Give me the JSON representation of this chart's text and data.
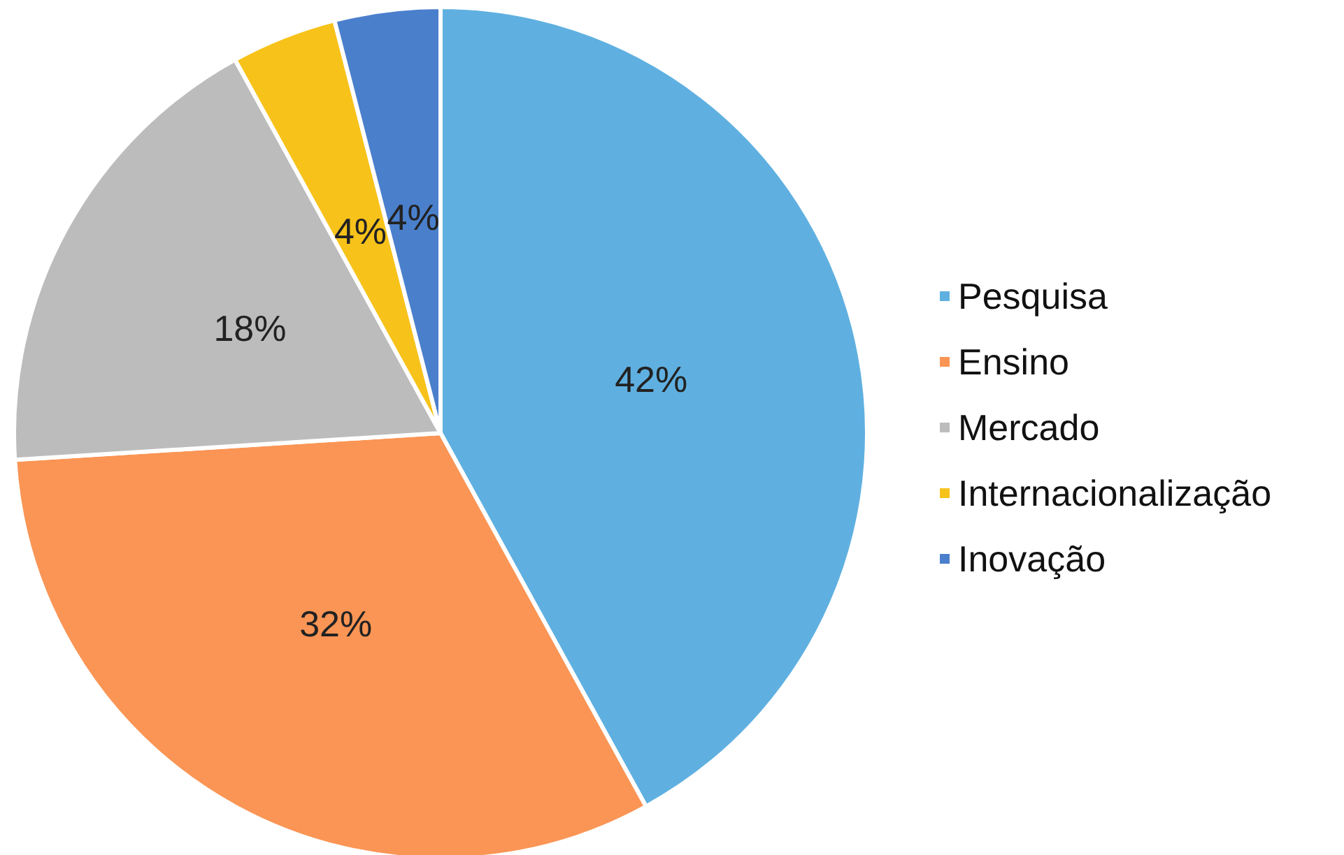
{
  "chart_data": {
    "type": "pie",
    "categories": [
      "Pesquisa",
      "Ensino",
      "Mercado",
      "Internacionalização",
      "Inovação"
    ],
    "values": [
      42,
      32,
      18,
      4,
      4
    ],
    "value_labels": [
      "42%",
      "32%",
      "18%",
      "4%",
      "4%"
    ],
    "colors": [
      "#5fb0e0",
      "#fa9555",
      "#bcbcbc",
      "#f7c21a",
      "#4a7fcc"
    ],
    "legend": "right"
  }
}
